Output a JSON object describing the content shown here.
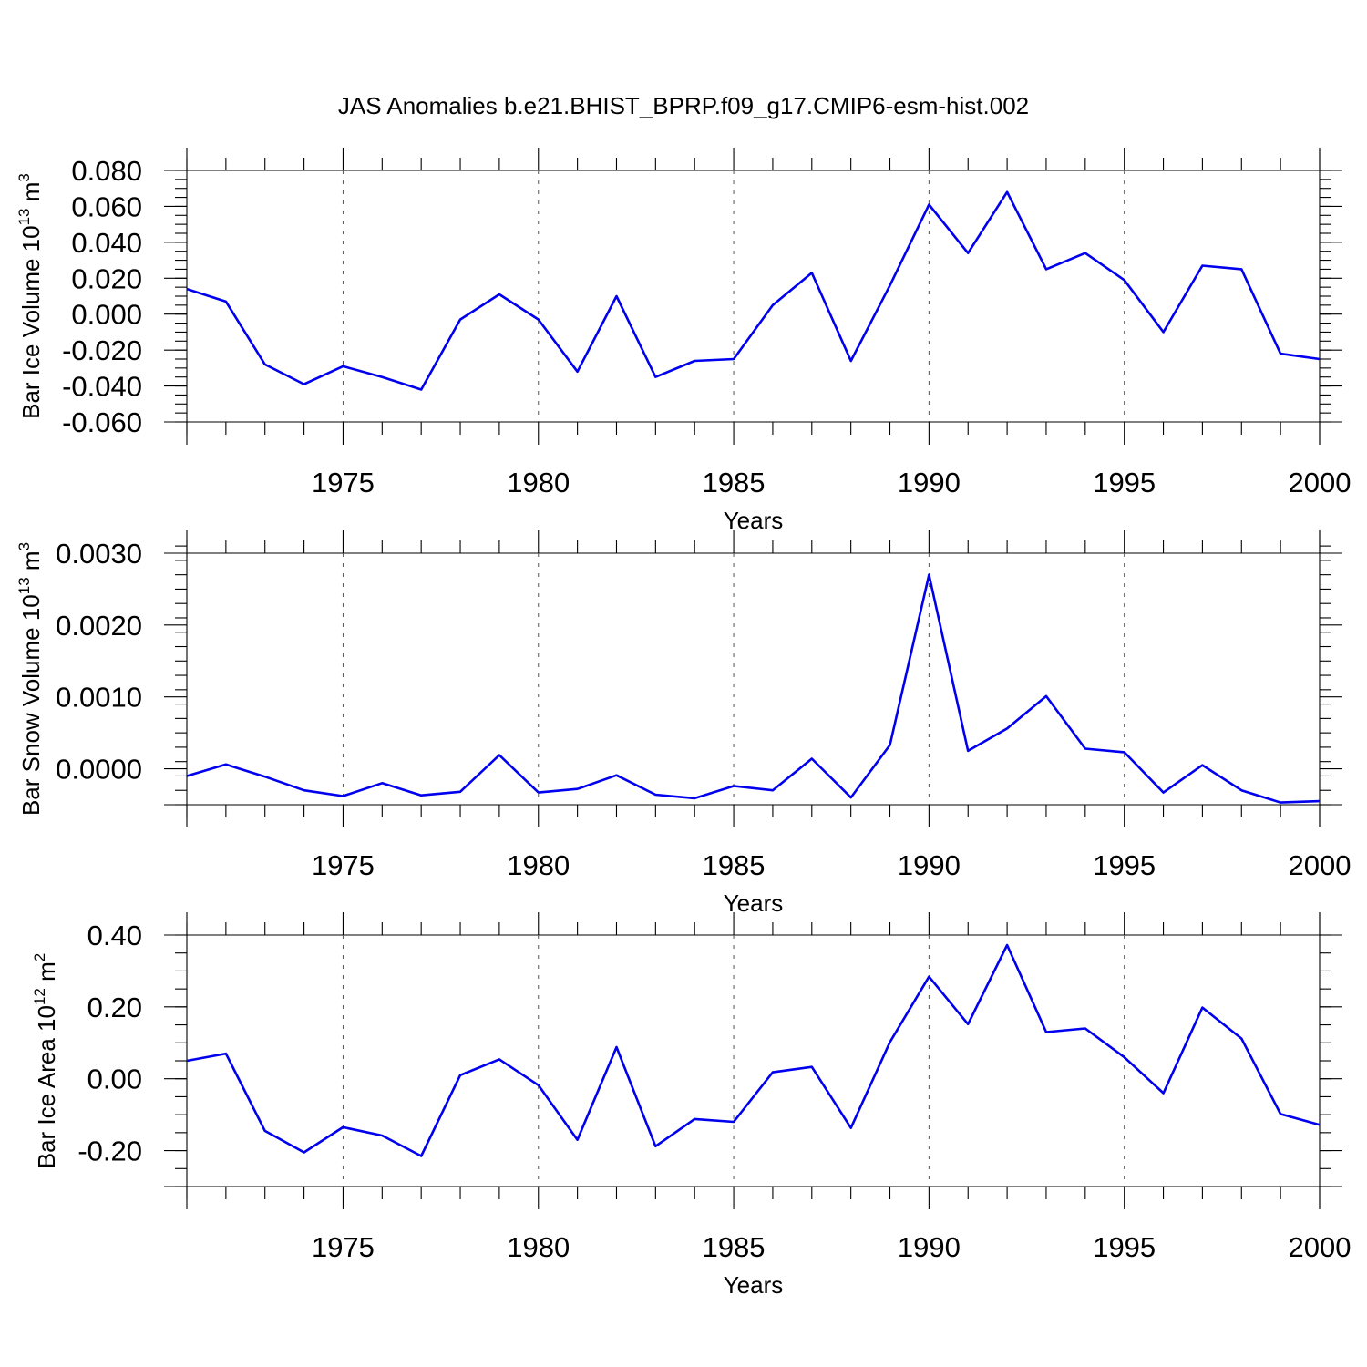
{
  "title": "JAS Anomalies b.e21.BHIST_BPRP.f09_g17.CMIP6-esm-hist.002",
  "colors": {
    "series": "#0000ee",
    "axis": "#000000",
    "grid": "#555555"
  },
  "chart_data": [
    {
      "type": "line",
      "ylabel": {
        "main": "Bar Ice Volume 10",
        "sup": "13",
        "mid": " m",
        "unit_sup": "3"
      },
      "xlabel": "Years",
      "xlim": [
        1971,
        2000
      ],
      "ylim": [
        -0.06,
        0.08
      ],
      "yticks": [
        -0.06,
        -0.04,
        -0.02,
        0.0,
        0.02,
        0.04,
        0.06,
        0.08
      ],
      "ytick_labels": [
        "-0.060",
        "-0.040",
        "-0.020",
        "0.000",
        "0.020",
        "0.040",
        "0.060",
        "0.080"
      ],
      "yminor_step": 0.005,
      "xticks": [
        1975,
        1980,
        1985,
        1990,
        1995,
        2000
      ],
      "xtick_labels": [
        "1975",
        "1980",
        "1985",
        "1990",
        "1995",
        "2000"
      ],
      "grid_x": true,
      "x": [
        1971,
        1972,
        1973,
        1974,
        1975,
        1976,
        1977,
        1978,
        1979,
        1980,
        1981,
        1982,
        1983,
        1984,
        1985,
        1986,
        1987,
        1988,
        1989,
        1990,
        1991,
        1992,
        1993,
        1994,
        1995,
        1996,
        1997,
        1998,
        1999,
        2000
      ],
      "values": [
        0.014,
        0.007,
        -0.028,
        -0.039,
        -0.029,
        -0.035,
        -0.042,
        -0.003,
        0.011,
        -0.003,
        -0.032,
        0.01,
        -0.035,
        -0.026,
        -0.025,
        0.005,
        0.023,
        -0.026,
        0.016,
        0.061,
        0.034,
        0.068,
        0.025,
        0.034,
        0.019,
        -0.01,
        0.027,
        0.025,
        -0.022,
        -0.025
      ]
    },
    {
      "type": "line",
      "ylabel": {
        "main": "Bar Snow Volume 10",
        "sup": "13",
        "mid": " m",
        "unit_sup": "3"
      },
      "xlabel": "Years",
      "xlim": [
        1971,
        2000
      ],
      "ylim": [
        -0.0005,
        0.003
      ],
      "yticks": [
        0.0,
        0.001,
        0.002,
        0.003
      ],
      "ytick_labels": [
        "0.0000",
        "0.0010",
        "0.0020",
        "0.0030"
      ],
      "yminor_step": 0.0002,
      "xticks": [
        1975,
        1980,
        1985,
        1990,
        1995,
        2000
      ],
      "xtick_labels": [
        "1975",
        "1980",
        "1985",
        "1990",
        "1995",
        "2000"
      ],
      "grid_x": true,
      "x": [
        1971,
        1972,
        1973,
        1974,
        1975,
        1976,
        1977,
        1978,
        1979,
        1980,
        1981,
        1982,
        1983,
        1984,
        1985,
        1986,
        1987,
        1988,
        1989,
        1990,
        1991,
        1992,
        1993,
        1994,
        1995,
        1996,
        1997,
        1998,
        1999,
        2000
      ],
      "values": [
        -0.0001,
        6e-05,
        -0.00011,
        -0.0003,
        -0.00038,
        -0.0002,
        -0.00037,
        -0.00032,
        0.00019,
        -0.00033,
        -0.00028,
        -9e-05,
        -0.00036,
        -0.00041,
        -0.00024,
        -0.0003,
        0.00014,
        -0.0004,
        0.00033,
        0.0027,
        0.00025,
        0.00056,
        0.00101,
        0.00028,
        0.00023,
        -0.00033,
        5e-05,
        -0.0003,
        -0.00047,
        -0.00045
      ]
    },
    {
      "type": "line",
      "ylabel": {
        "main": "Bar Ice Area 10",
        "sup": "12",
        "mid": " m",
        "unit_sup": "2"
      },
      "xlabel": "Years",
      "xlim": [
        1971,
        2000
      ],
      "ylim": [
        -0.3,
        0.4
      ],
      "yticks": [
        -0.2,
        0.0,
        0.2,
        0.4
      ],
      "ytick_labels": [
        "-0.20",
        "0.00",
        "0.20",
        "0.40"
      ],
      "yminor_step": 0.05,
      "xticks": [
        1975,
        1980,
        1985,
        1990,
        1995,
        2000
      ],
      "xtick_labels": [
        "1975",
        "1980",
        "1985",
        "1990",
        "1995",
        "2000"
      ],
      "grid_x": true,
      "x": [
        1971,
        1972,
        1973,
        1974,
        1975,
        1976,
        1977,
        1978,
        1979,
        1980,
        1981,
        1982,
        1983,
        1984,
        1985,
        1986,
        1987,
        1988,
        1989,
        1990,
        1991,
        1992,
        1993,
        1994,
        1995,
        1996,
        1997,
        1998,
        1999,
        2000
      ],
      "values": [
        0.05,
        0.07,
        -0.145,
        -0.205,
        -0.135,
        -0.158,
        -0.215,
        0.01,
        0.054,
        -0.018,
        -0.17,
        0.088,
        -0.188,
        -0.112,
        -0.12,
        0.018,
        0.033,
        -0.137,
        0.102,
        0.284,
        0.152,
        0.372,
        0.13,
        0.14,
        0.06,
        -0.04,
        0.198,
        0.112,
        -0.098,
        -0.128
      ]
    }
  ]
}
